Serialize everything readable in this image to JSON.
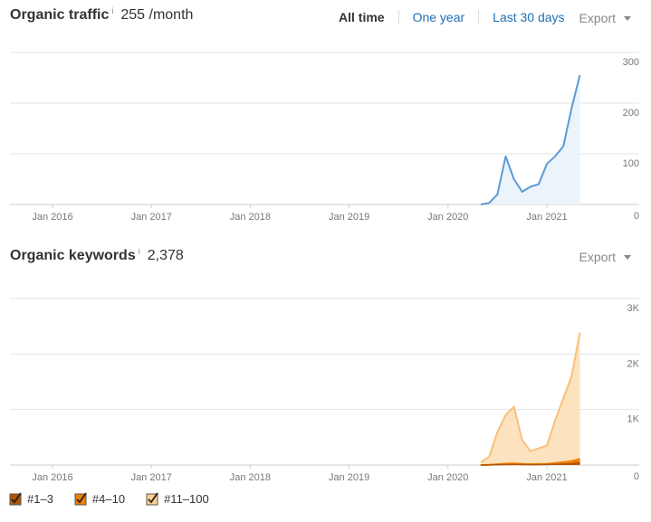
{
  "traffic": {
    "title": "Organic traffic",
    "info_icon": "i",
    "value": "255 /month",
    "ranges": [
      "All time",
      "One year",
      "Last 30 days"
    ],
    "export_label": "Export"
  },
  "keywords": {
    "title": "Organic keywords",
    "info_icon": "i",
    "value": "2,378",
    "export_label": "Export"
  },
  "legend": {
    "items": [
      {
        "label": "#1–3",
        "color": "#b35400"
      },
      {
        "label": "#4–10",
        "color": "#f07f00"
      },
      {
        "label": "#11–100",
        "color": "#ffd08f"
      }
    ]
  },
  "colors": {
    "traffic_line": "#5b9bd5",
    "traffic_fill": "#ebf3fb",
    "top3": "#b35400",
    "top10": "#f07f00",
    "top100_line": "#f8c07a",
    "top100_fill": "#fde2bf"
  },
  "chart_data": [
    {
      "type": "area",
      "title": "Organic traffic",
      "x_tick_labels": [
        "Jan 2016",
        "Jan 2017",
        "Jan 2018",
        "Jan 2019",
        "Jan 2020",
        "Jan 2021"
      ],
      "y_tick_labels": [
        "300",
        "200",
        "100",
        "0"
      ],
      "ylim": [
        0,
        300
      ],
      "grid": true,
      "series": [
        {
          "x": [
            "2020-05",
            "2020-06",
            "2020-07",
            "2020-08",
            "2020-09",
            "2020-10",
            "2020-11",
            "2020-12",
            "2021-01",
            "2021-02",
            "2021-03",
            "2021-04",
            "2021-05"
          ],
          "values": [
            0,
            3,
            20,
            95,
            50,
            25,
            35,
            40,
            80,
            95,
            115,
            190,
            255
          ]
        }
      ]
    },
    {
      "type": "area",
      "title": "Organic keywords",
      "x_tick_labels": [
        "Jan 2016",
        "Jan 2017",
        "Jan 2018",
        "Jan 2019",
        "Jan 2020",
        "Jan 2021"
      ],
      "y_tick_labels": [
        "3K",
        "2K",
        "1K",
        "0"
      ],
      "ylim": [
        0,
        3000
      ],
      "grid": true,
      "series": [
        {
          "name": "#11–100",
          "x": [
            "2020-05",
            "2020-06",
            "2020-07",
            "2020-08",
            "2020-09",
            "2020-10",
            "2020-11",
            "2020-12",
            "2021-01",
            "2021-02",
            "2021-03",
            "2021-04",
            "2021-05"
          ],
          "values": [
            50,
            150,
            600,
            900,
            1050,
            450,
            250,
            300,
            350,
            800,
            1200,
            1600,
            2380
          ]
        },
        {
          "name": "#4–10",
          "x": [
            "2020-05",
            "2020-06",
            "2020-07",
            "2020-08",
            "2020-09",
            "2020-10",
            "2020-11",
            "2020-12",
            "2021-01",
            "2021-02",
            "2021-03",
            "2021-04",
            "2021-05"
          ],
          "values": [
            0,
            5,
            15,
            25,
            30,
            20,
            15,
            18,
            22,
            35,
            50,
            70,
            110
          ]
        },
        {
          "name": "#1–3",
          "x": [
            "2020-05",
            "2020-06",
            "2020-07",
            "2020-08",
            "2020-09",
            "2020-10",
            "2020-11",
            "2020-12",
            "2021-01",
            "2021-02",
            "2021-03",
            "2021-04",
            "2021-05"
          ],
          "values": [
            0,
            2,
            5,
            8,
            10,
            8,
            6,
            7,
            9,
            12,
            18,
            25,
            40
          ]
        }
      ]
    }
  ]
}
